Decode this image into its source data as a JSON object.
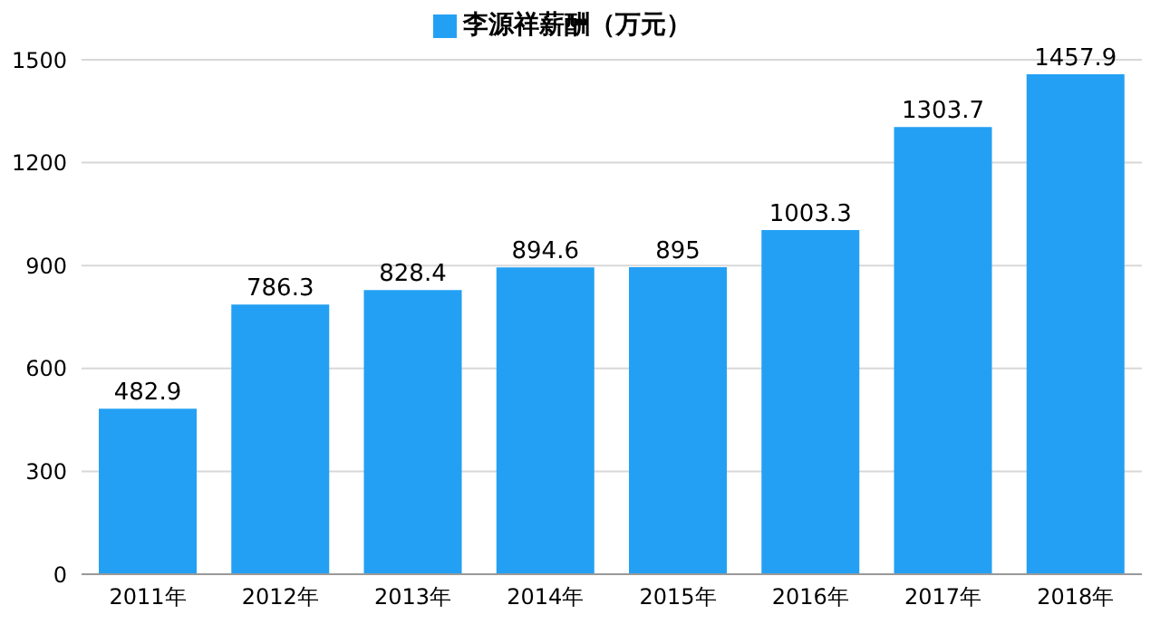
{
  "chart_data": {
    "type": "bar",
    "categories": [
      "2011年",
      "2012年",
      "2013年",
      "2014年",
      "2015年",
      "2016年",
      "2017年",
      "2018年"
    ],
    "series": [
      {
        "name": "李源祥薪酬（万元）",
        "color": "#23a0f3",
        "values": [
          482.9,
          786.3,
          828.4,
          894.6,
          895,
          1003.3,
          1303.7,
          1457.9
        ]
      }
    ],
    "ylim": [
      0,
      1500
    ],
    "yticks": [
      0,
      300,
      600,
      900,
      1200,
      1500
    ],
    "grid": "y",
    "legend": "top",
    "data_labels": true
  }
}
